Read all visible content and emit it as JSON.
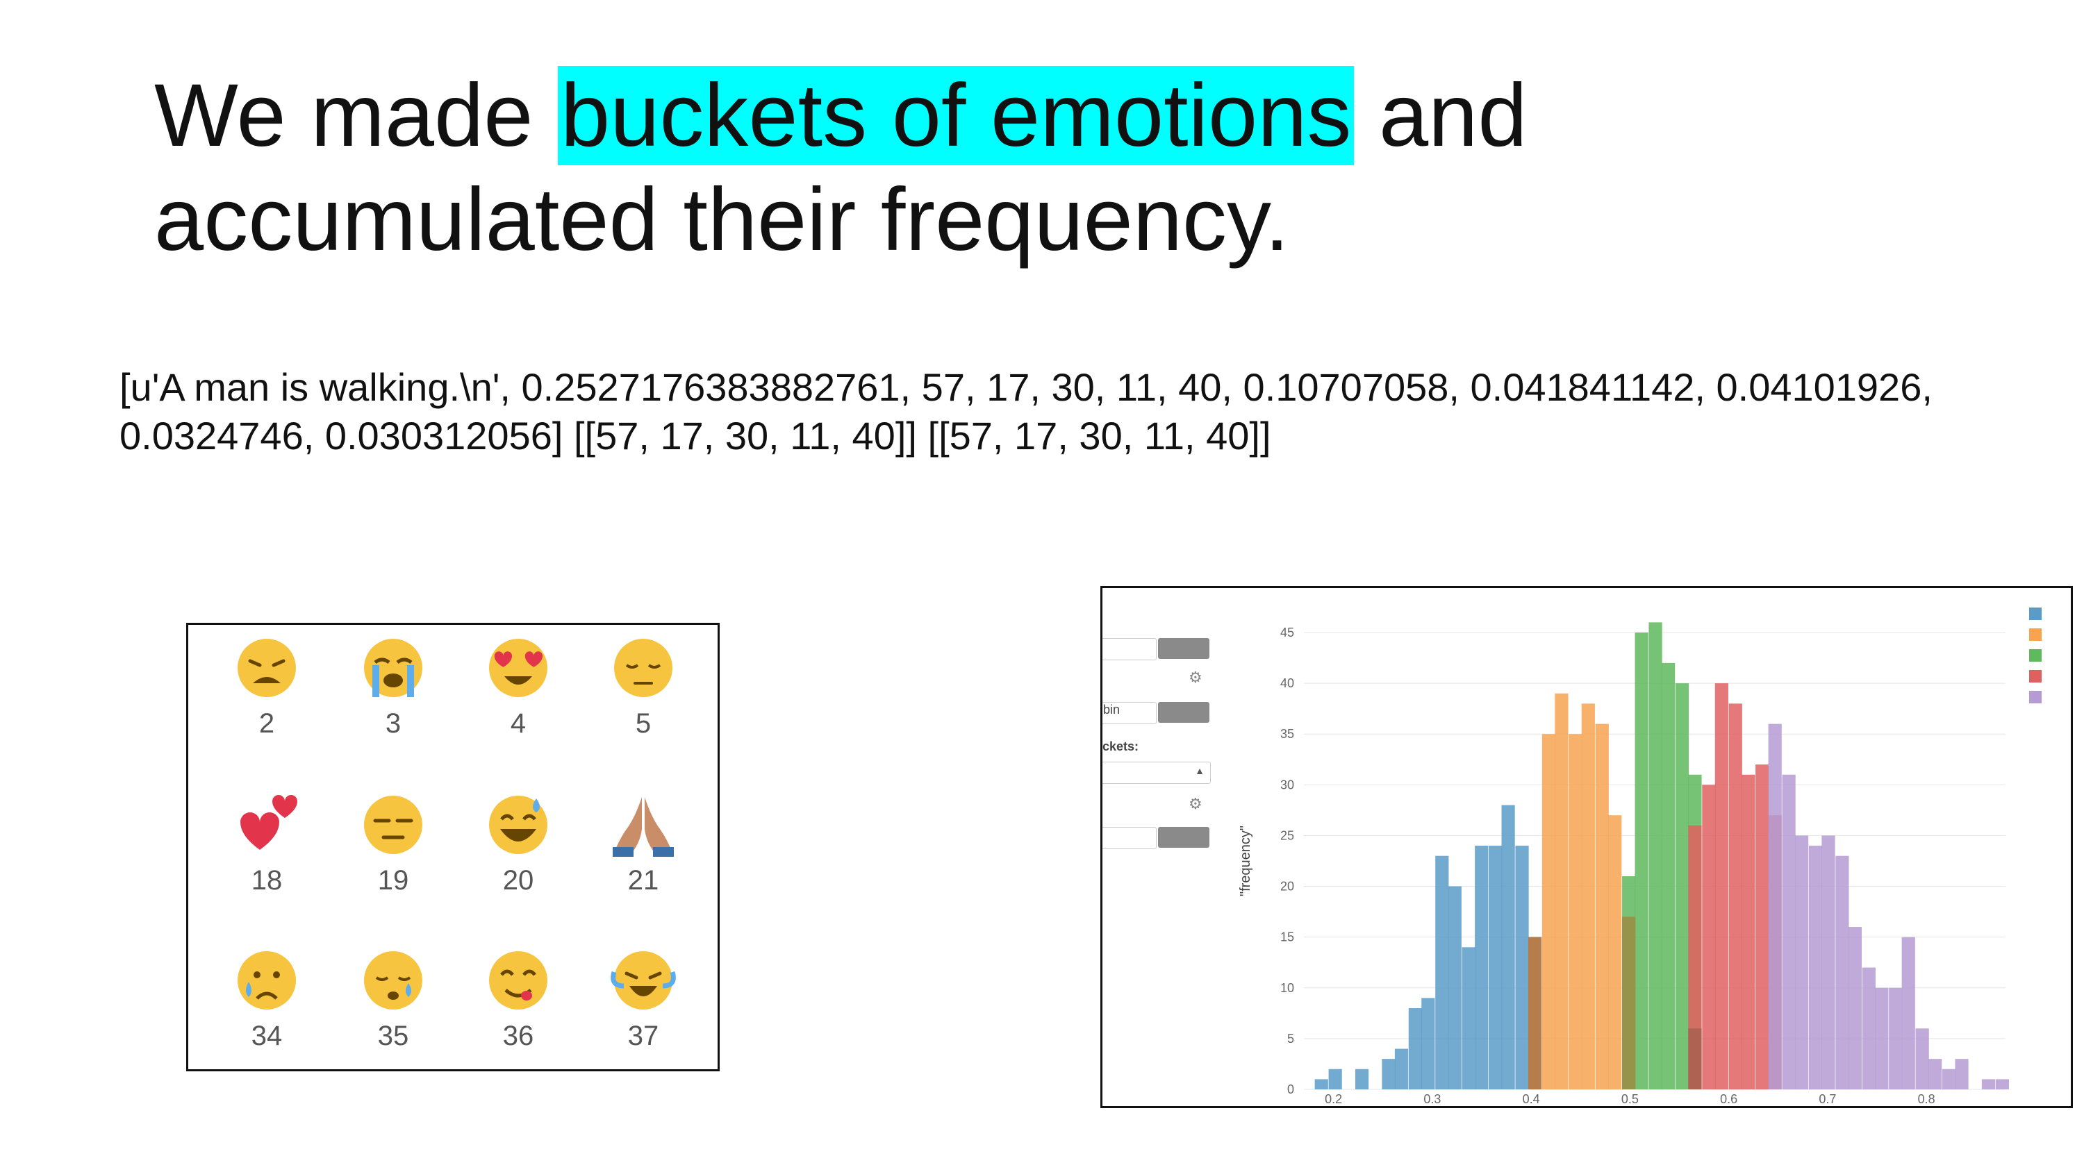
{
  "title": {
    "prefix": "We made ",
    "highlight": "buckets of emotions",
    "suffix": " and",
    "line2": "accumulated their frequency."
  },
  "code_text": {
    "line1": "[u'A man is walking.\\n', 0.2527176383882761, 57, 17, 30, 11, 40, 0.10707058, 0.041841142, 0.04101926,",
    "line2": "0.0324746, 0.030312056]  [[57, 17, 30, 11, 40]] [[57, 17, 30, 11, 40]]"
  },
  "emoji_grid": [
    {
      "num": "2",
      "icon": "weary-face-icon"
    },
    {
      "num": "3",
      "icon": "loudly-crying-face-icon"
    },
    {
      "num": "4",
      "icon": "heart-eyes-face-icon"
    },
    {
      "num": "5",
      "icon": "pensive-face-icon"
    },
    {
      "num": "18",
      "icon": "two-hearts-icon"
    },
    {
      "num": "19",
      "icon": "expressionless-face-icon"
    },
    {
      "num": "20",
      "icon": "grinning-sweat-face-icon"
    },
    {
      "num": "21",
      "icon": "folded-hands-icon"
    },
    {
      "num": "34",
      "icon": "crying-face-icon"
    },
    {
      "num": "35",
      "icon": "sleepy-face-icon"
    },
    {
      "num": "36",
      "icon": "yum-face-icon"
    },
    {
      "num": "37",
      "icon": "tears-of-joy-face-icon"
    }
  ],
  "sidebar": {
    "bin_label": "bin",
    "buckets_label": "ckets:",
    "button_label": "-"
  },
  "chart_data": {
    "type": "bar",
    "ylabel": "\"frequency\"",
    "xlabel": "",
    "xlim": [
      0.17,
      0.88
    ],
    "ylim": [
      0,
      45
    ],
    "xticks": [
      "0.2",
      "0.3",
      "0.4",
      "0.5",
      "0.6",
      "0.7",
      "0.8"
    ],
    "yticks": [
      "0",
      "5",
      "10",
      "15",
      "20",
      "25",
      "30",
      "35",
      "40",
      "45"
    ],
    "bin_width": 0.0135,
    "legend_position": "top-right",
    "series": [
      {
        "color": "#5b9bc8",
        "x": [
          0.181,
          0.195,
          0.222,
          0.249,
          0.262,
          0.276,
          0.289,
          0.303,
          0.316,
          0.33,
          0.343,
          0.357,
          0.37,
          0.384,
          0.397
        ],
        "values": [
          1,
          2,
          2,
          3,
          4,
          8,
          9,
          23,
          20,
          14,
          24,
          24,
          28,
          24,
          15
        ]
      },
      {
        "color": "#f7a350",
        "x": [
          0.397,
          0.411,
          0.424,
          0.438,
          0.451,
          0.465,
          0.478,
          0.492
        ],
        "values": [
          15,
          35,
          39,
          35,
          38,
          36,
          27,
          17
        ]
      },
      {
        "color": "#5fb95d",
        "x": [
          0.492,
          0.505,
          0.519,
          0.532,
          0.546,
          0.559
        ],
        "values": [
          21,
          45,
          46,
          42,
          40,
          31
        ]
      },
      {
        "color": "#e06060",
        "x": [
          0.559,
          0.573,
          0.586,
          0.6,
          0.613,
          0.627,
          0.64
        ],
        "values": [
          26,
          30,
          40,
          38,
          31,
          32,
          27
        ]
      },
      {
        "color": "#b59bd4",
        "x": [
          0.64,
          0.654,
          0.667,
          0.681,
          0.694,
          0.708,
          0.721,
          0.735,
          0.748,
          0.762,
          0.775,
          0.789,
          0.802,
          0.816,
          0.829,
          0.856,
          0.87
        ],
        "values": [
          36,
          31,
          25,
          24,
          25,
          23,
          16,
          12,
          10,
          10,
          15,
          6,
          3,
          2,
          3,
          1,
          1
        ]
      }
    ],
    "overlap_bars": [
      {
        "color": "#b07848",
        "x": 0.397,
        "value": 15
      },
      {
        "color": "#9a9048",
        "x": 0.492,
        "value": 17
      },
      {
        "color": "#a86050",
        "x": 0.559,
        "value": 6
      }
    ]
  }
}
